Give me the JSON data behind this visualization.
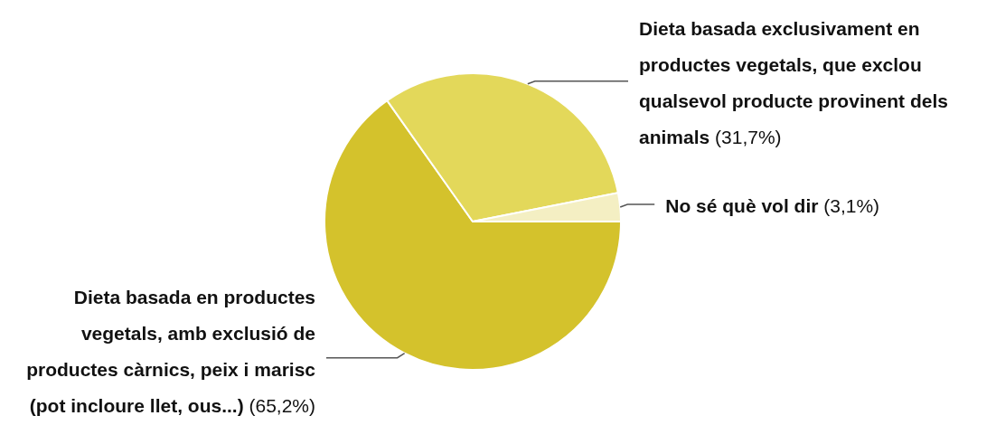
{
  "chart_data": {
    "type": "pie",
    "categories": [
      "Dieta basada en productes vegetals, amb exclusió de productes càrnics, peix i marisc (pot incloure llet, ous...)",
      "Dieta basada exclusivament en productes vegetals, que exclou qualsevol producte provinent dels animals",
      "No sé què vol dir"
    ],
    "values": [
      65.2,
      31.7,
      3.1
    ],
    "value_labels": [
      "(65,2%)",
      "(31,7%)",
      "(3,1%)"
    ],
    "colors": [
      "#d4c22c",
      "#e3d85a",
      "#f4efc3"
    ]
  }
}
